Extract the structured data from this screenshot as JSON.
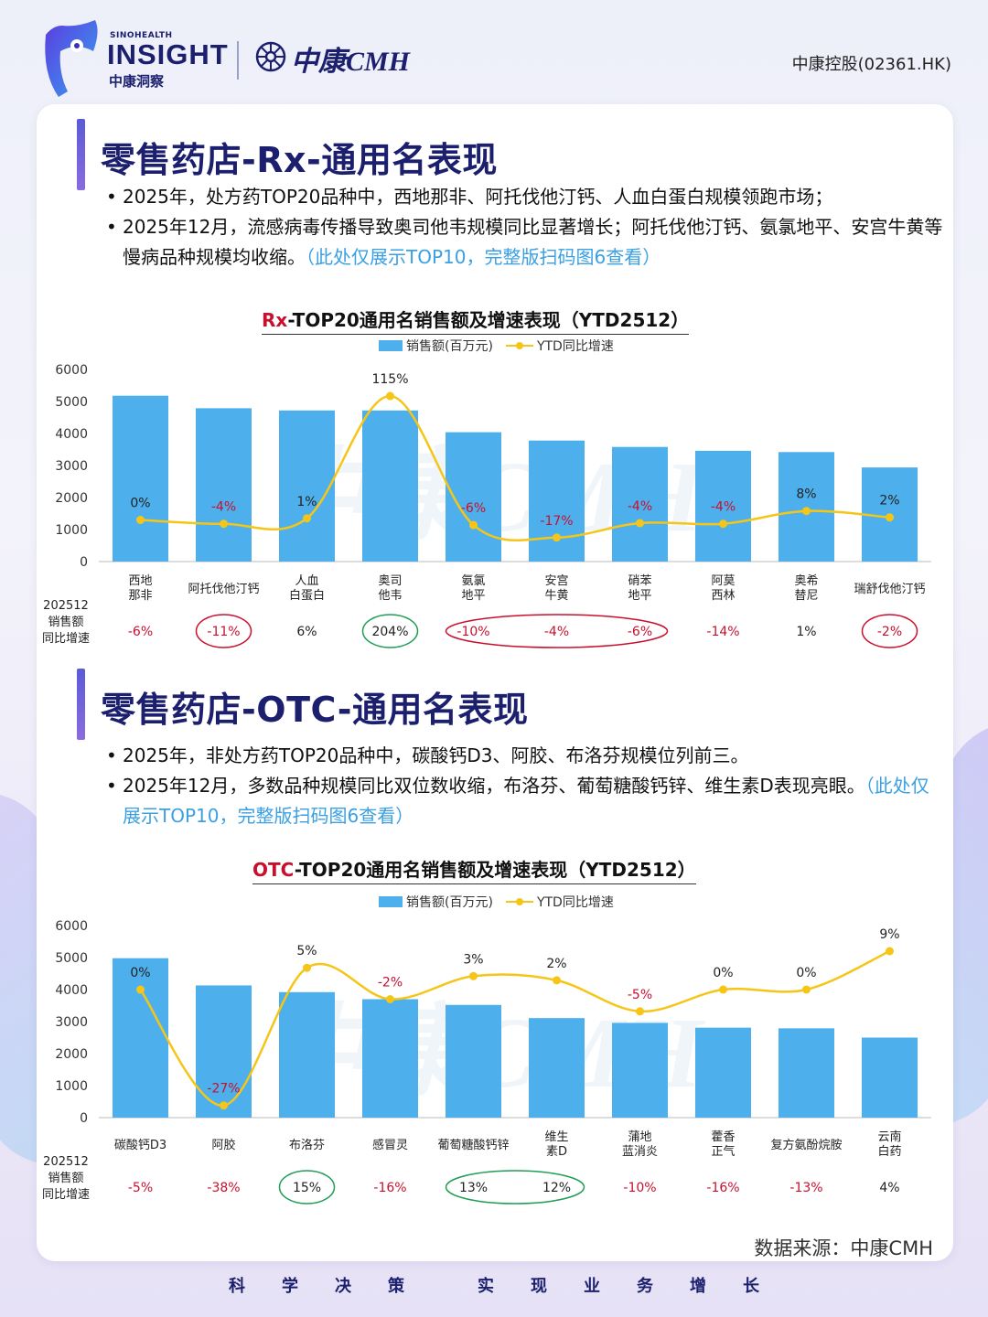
{
  "header": {
    "brand_small": "SINOHEALTH",
    "brand": "INSIGHT",
    "brand_cn": "中康洞察",
    "partner": "中康CMH",
    "ticker": "中康控股(02361.HK)"
  },
  "section1": {
    "title": "零售药店-Rx-通用名表现",
    "bullet1": "2025年，处方药TOP20品种中，西地那非、阿托伐他汀钙、人血白蛋白规模领跑市场；",
    "bullet2": "2025年12月，流感病毒传播导致奥司他韦规模同比显著增长；阿托伐他汀钙、氨氯地平、安宫牛黄等慢病品种规模均收缩。",
    "note": "（此处仅展示TOP10，完整版扫码图6查看）"
  },
  "section2": {
    "title": "零售药店-OTC-通用名表现",
    "bullet1": "2025年，非处方药TOP20品种中，碳酸钙D3、阿胶、布洛芬规模位列前三。",
    "bullet2": "2025年12月，多数品种规模同比双位数收缩，布洛芬、葡萄糖酸钙锌、维生素D表现亮眼。",
    "note": "（此处仅展示TOP10，完整版扫码图6查看）"
  },
  "legend": {
    "bar": "销售额(百万元)",
    "line": "YTD同比增速"
  },
  "row_label": [
    "202512",
    "销售额",
    "同比增速"
  ],
  "source": "数据来源：中康CMH",
  "footer": [
    "科",
    "学",
    "决",
    "策",
    "实",
    "现",
    "业",
    "务",
    "增",
    "长"
  ],
  "colors": {
    "bar": "#4db0ec",
    "line": "#f5c518",
    "neg": "#c8102e",
    "circle_red": "#c8102e",
    "circle_green": "#1f9d55",
    "title": "#1b1f6e"
  },
  "chart_data": [
    {
      "type": "bar",
      "title_hl": "Rx",
      "title_rest": "-TOP20通用名销售额及增速表现（YTD2512）",
      "ylabel": "销售额(百万元)",
      "ylim": [
        0,
        6000
      ],
      "yticks": [
        0,
        1000,
        2000,
        3000,
        4000,
        5000,
        6000
      ],
      "categories": [
        [
          "西地",
          "那非"
        ],
        [
          "阿托伐他汀钙"
        ],
        [
          "人血",
          "白蛋白"
        ],
        [
          "奥司",
          "他韦"
        ],
        [
          "氨氯",
          "地平"
        ],
        [
          "安宫",
          "牛黄"
        ],
        [
          "硝苯",
          "地平"
        ],
        [
          "阿莫",
          "西林"
        ],
        [
          "奥希",
          "替尼"
        ],
        [
          "瑞舒伐他汀钙"
        ]
      ],
      "series": [
        {
          "name": "销售额(百万元)",
          "kind": "bar",
          "values": [
            5180,
            4790,
            4720,
            4720,
            4040,
            3780,
            3580,
            3460,
            3420,
            2940
          ]
        },
        {
          "name": "YTD同比增速",
          "kind": "line",
          "values": [
            1300,
            1180,
            1350,
            5170,
            1140,
            750,
            1200,
            1180,
            1580,
            1380
          ],
          "labels": [
            "0%",
            "-4%",
            "1%",
            "115%",
            "-6%",
            "-17%",
            "-4%",
            "-4%",
            "8%",
            "2%"
          ]
        }
      ],
      "monthly_growth": [
        "-6%",
        "-11%",
        "6%",
        "204%",
        "-10%",
        "-4%",
        "-6%",
        "-14%",
        "1%",
        "-2%"
      ],
      "highlights": [
        {
          "from": 1,
          "to": 1,
          "color": "red"
        },
        {
          "from": 3,
          "to": 3,
          "color": "green"
        },
        {
          "from": 4,
          "to": 6,
          "color": "red"
        },
        {
          "from": 9,
          "to": 9,
          "color": "red"
        }
      ]
    },
    {
      "type": "bar",
      "title_hl": "OTC",
      "title_rest": "-TOP20通用名销售额及增速表现（YTD2512）",
      "ylabel": "销售额(百万元)",
      "ylim": [
        0,
        6000
      ],
      "yticks": [
        0,
        1000,
        2000,
        3000,
        4000,
        5000,
        6000
      ],
      "categories": [
        [
          "碳酸钙D3"
        ],
        [
          "阿胶"
        ],
        [
          "布洛芬"
        ],
        [
          "感冒灵"
        ],
        [
          "葡萄糖酸钙锌"
        ],
        [
          "维生",
          "素D"
        ],
        [
          "蒲地",
          "蓝消炎"
        ],
        [
          "藿香",
          "正气"
        ],
        [
          "复方氨酚烷胺"
        ],
        [
          "云南",
          "白药"
        ]
      ],
      "series": [
        {
          "name": "销售额(百万元)",
          "kind": "bar",
          "values": [
            4980,
            4130,
            3920,
            3700,
            3520,
            3110,
            2960,
            2810,
            2790,
            2500
          ]
        },
        {
          "name": "YTD同比增速",
          "kind": "line",
          "values": [
            4000,
            380,
            4680,
            3700,
            4420,
            4290,
            3320,
            4000,
            4000,
            5200
          ],
          "labels": [
            "0%",
            "-27%",
            "5%",
            "-2%",
            "3%",
            "2%",
            "-5%",
            "0%",
            "0%",
            "9%"
          ]
        }
      ],
      "monthly_growth": [
        "-5%",
        "-38%",
        "15%",
        "-16%",
        "13%",
        "12%",
        "-10%",
        "-16%",
        "-13%",
        "4%"
      ],
      "highlights": [
        {
          "from": 2,
          "to": 2,
          "color": "green"
        },
        {
          "from": 4,
          "to": 5,
          "color": "green"
        }
      ]
    }
  ]
}
